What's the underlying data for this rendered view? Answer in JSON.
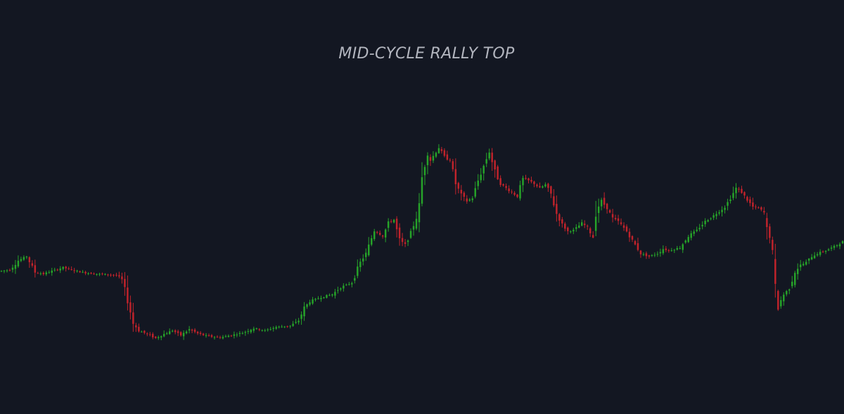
{
  "chart_data": {
    "type": "candlestick",
    "title": "MID-CYCLE RALLY TOP",
    "xlabel": "",
    "ylabel": "",
    "grid": false,
    "colors": {
      "background": "#131722",
      "up": "#26a329",
      "down": "#c0232b",
      "title": "#b2b5be"
    },
    "ylim": [
      0,
      500
    ],
    "waypoints": [
      [
        0,
        180
      ],
      [
        3,
        182
      ],
      [
        6,
        198
      ],
      [
        9,
        205
      ],
      [
        12,
        178
      ],
      [
        15,
        175
      ],
      [
        18,
        180
      ],
      [
        22,
        186
      ],
      [
        26,
        181
      ],
      [
        30,
        177
      ],
      [
        34,
        175
      ],
      [
        38,
        174
      ],
      [
        41,
        173
      ],
      [
        43,
        165
      ],
      [
        45,
        130
      ],
      [
        47,
        90
      ],
      [
        49,
        78
      ],
      [
        52,
        72
      ],
      [
        55,
        65
      ],
      [
        58,
        72
      ],
      [
        61,
        78
      ],
      [
        64,
        70
      ],
      [
        67,
        80
      ],
      [
        70,
        73
      ],
      [
        74,
        68
      ],
      [
        78,
        66
      ],
      [
        82,
        70
      ],
      [
        86,
        74
      ],
      [
        90,
        82
      ],
      [
        94,
        78
      ],
      [
        98,
        84
      ],
      [
        103,
        86
      ],
      [
        106,
        95
      ],
      [
        108,
        117
      ],
      [
        110,
        128
      ],
      [
        114,
        135
      ],
      [
        118,
        140
      ],
      [
        121,
        152
      ],
      [
        125,
        160
      ],
      [
        128,
        195
      ],
      [
        130,
        210
      ],
      [
        133,
        250
      ],
      [
        136,
        240
      ],
      [
        138,
        262
      ],
      [
        140,
        268
      ],
      [
        142,
        232
      ],
      [
        144,
        225
      ],
      [
        146,
        245
      ],
      [
        148,
        272
      ],
      [
        149,
        292
      ],
      [
        150,
        340
      ],
      [
        152,
        385
      ],
      [
        153,
        370
      ],
      [
        156,
        392
      ],
      [
        158,
        375
      ],
      [
        160,
        370
      ],
      [
        162,
        330
      ],
      [
        164,
        310
      ],
      [
        166,
        300
      ],
      [
        168,
        305
      ],
      [
        170,
        335
      ],
      [
        172,
        360
      ],
      [
        174,
        385
      ],
      [
        176,
        350
      ],
      [
        178,
        330
      ],
      [
        180,
        322
      ],
      [
        182,
        315
      ],
      [
        184,
        308
      ],
      [
        186,
        338
      ],
      [
        188,
        335
      ],
      [
        190,
        330
      ],
      [
        192,
        322
      ],
      [
        194,
        328
      ],
      [
        196,
        312
      ],
      [
        198,
        278
      ],
      [
        200,
        260
      ],
      [
        202,
        248
      ],
      [
        204,
        250
      ],
      [
        207,
        262
      ],
      [
        209,
        255
      ],
      [
        211,
        238
      ],
      [
        212,
        284
      ],
      [
        214,
        300
      ],
      [
        216,
        288
      ],
      [
        218,
        270
      ],
      [
        220,
        265
      ],
      [
        223,
        248
      ],
      [
        226,
        225
      ],
      [
        228,
        210
      ],
      [
        231,
        205
      ],
      [
        234,
        210
      ],
      [
        236,
        218
      ],
      [
        238,
        215
      ],
      [
        242,
        220
      ],
      [
        245,
        240
      ],
      [
        248,
        250
      ],
      [
        251,
        265
      ],
      [
        254,
        275
      ],
      [
        258,
        290
      ],
      [
        260,
        305
      ],
      [
        262,
        322
      ],
      [
        264,
        315
      ],
      [
        266,
        302
      ],
      [
        268,
        290
      ],
      [
        270,
        288
      ],
      [
        272,
        280
      ],
      [
        273,
        250
      ],
      [
        274,
        240
      ],
      [
        275,
        210
      ],
      [
        276,
        145
      ],
      [
        277,
        120
      ],
      [
        279,
        140
      ],
      [
        281,
        150
      ],
      [
        283,
        180
      ],
      [
        285,
        190
      ],
      [
        287,
        195
      ],
      [
        289,
        205
      ],
      [
        291,
        210
      ],
      [
        294,
        215
      ],
      [
        297,
        222
      ],
      [
        300,
        230
      ]
    ]
  }
}
